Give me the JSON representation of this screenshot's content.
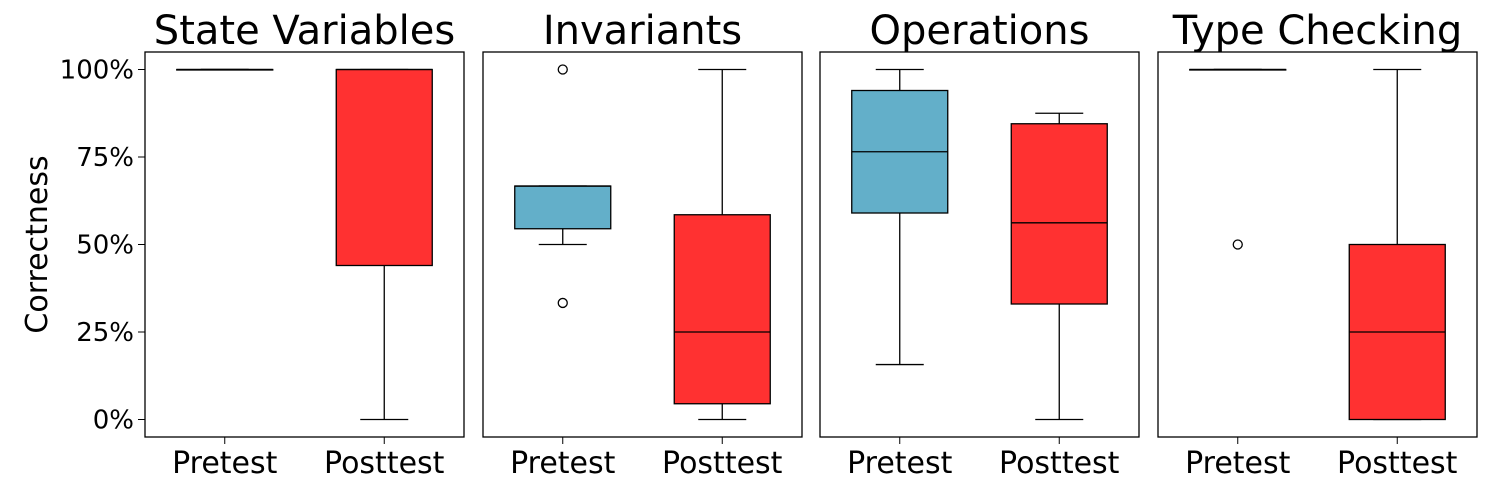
{
  "chart_data": {
    "type": "box",
    "ylabel": "Correctness",
    "y_tick_labels": [
      "0%",
      "25%",
      "50%",
      "75%",
      "100%"
    ],
    "y_ticks": [
      0,
      0.25,
      0.5,
      0.75,
      1.0
    ],
    "ylim": [
      -0.05,
      1.05
    ],
    "categories": [
      "Pretest",
      "Posttest"
    ],
    "colors": {
      "Pretest": "#63afc9",
      "Posttest": "#ff3131"
    },
    "grid": false,
    "panels": [
      {
        "title": "State Variables",
        "boxes": [
          {
            "category": "Pretest",
            "whisker_low": 1.0,
            "q1": 1.0,
            "median": 1.0,
            "q3": 1.0,
            "whisker_high": 1.0,
            "outliers": []
          },
          {
            "category": "Posttest",
            "whisker_low": 0.0,
            "q1": 0.44,
            "median": 1.0,
            "q3": 1.0,
            "whisker_high": 1.0,
            "outliers": []
          }
        ]
      },
      {
        "title": "Invariants",
        "boxes": [
          {
            "category": "Pretest",
            "whisker_low": 0.5,
            "q1": 0.545,
            "median": 0.667,
            "q3": 0.667,
            "whisker_high": 0.667,
            "outliers": [
              0.333,
              1.0
            ]
          },
          {
            "category": "Posttest",
            "whisker_low": 0.0,
            "q1": 0.045,
            "median": 0.25,
            "q3": 0.585,
            "whisker_high": 1.0,
            "outliers": []
          }
        ]
      },
      {
        "title": "Operations",
        "boxes": [
          {
            "category": "Pretest",
            "whisker_low": 0.157,
            "q1": 0.59,
            "median": 0.765,
            "q3": 0.94,
            "whisker_high": 1.0,
            "outliers": []
          },
          {
            "category": "Posttest",
            "whisker_low": 0.0,
            "q1": 0.33,
            "median": 0.562,
            "q3": 0.845,
            "whisker_high": 0.875,
            "outliers": []
          }
        ]
      },
      {
        "title": "Type Checking",
        "boxes": [
          {
            "category": "Pretest",
            "whisker_low": 1.0,
            "q1": 1.0,
            "median": 1.0,
            "q3": 1.0,
            "whisker_high": 1.0,
            "outliers": [
              0.5
            ]
          },
          {
            "category": "Posttest",
            "whisker_low": 0.0,
            "q1": 0.0,
            "median": 0.25,
            "q3": 0.5,
            "whisker_high": 1.0,
            "outliers": []
          }
        ]
      }
    ]
  }
}
